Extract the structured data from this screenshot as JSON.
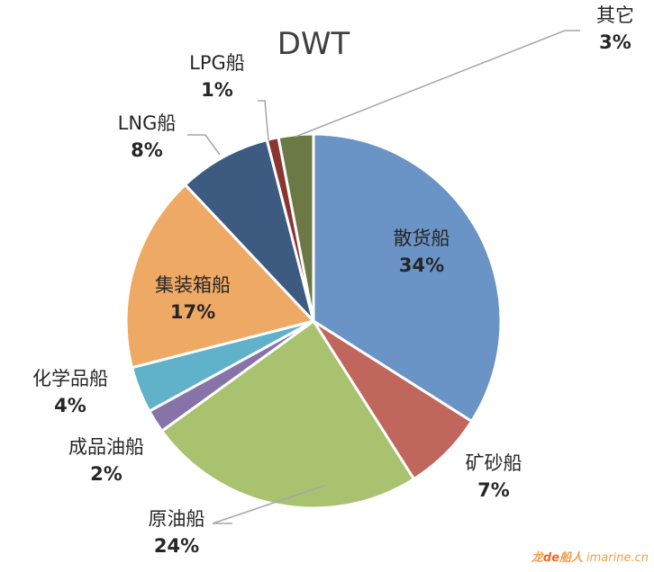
{
  "chart_data": {
    "type": "pie",
    "title": "DWT",
    "series": [
      {
        "name": "散货船",
        "value": 34,
        "label": "34%",
        "color": "#6a93c6"
      },
      {
        "name": "矿砂船",
        "value": 7,
        "label": "7%",
        "color": "#c1665c"
      },
      {
        "name": "原油船",
        "value": 24,
        "label": "24%",
        "color": "#a9c26f"
      },
      {
        "name": "成品油船",
        "value": 2,
        "label": "2%",
        "color": "#8873a9"
      },
      {
        "name": "化学品船",
        "value": 4,
        "label": "4%",
        "color": "#5fb2c9"
      },
      {
        "name": "集装箱船",
        "value": 17,
        "label": "17%",
        "color": "#eea965"
      },
      {
        "name": "LNG船",
        "value": 8,
        "label": "8%",
        "color": "#3d5a80"
      },
      {
        "name": "LPG船",
        "value": 1,
        "label": "1%",
        "color": "#8b3530"
      },
      {
        "name": "其它",
        "value": 3,
        "label": "3%",
        "color": "#6b7a45"
      }
    ],
    "start_angle": "12 o'clock",
    "direction": "clockwise",
    "legend": "none"
  },
  "watermark": {
    "brand_part1": "龙",
    "brand_part2": "de",
    "brand_part3": "船人",
    "site": "imarine.cn"
  }
}
